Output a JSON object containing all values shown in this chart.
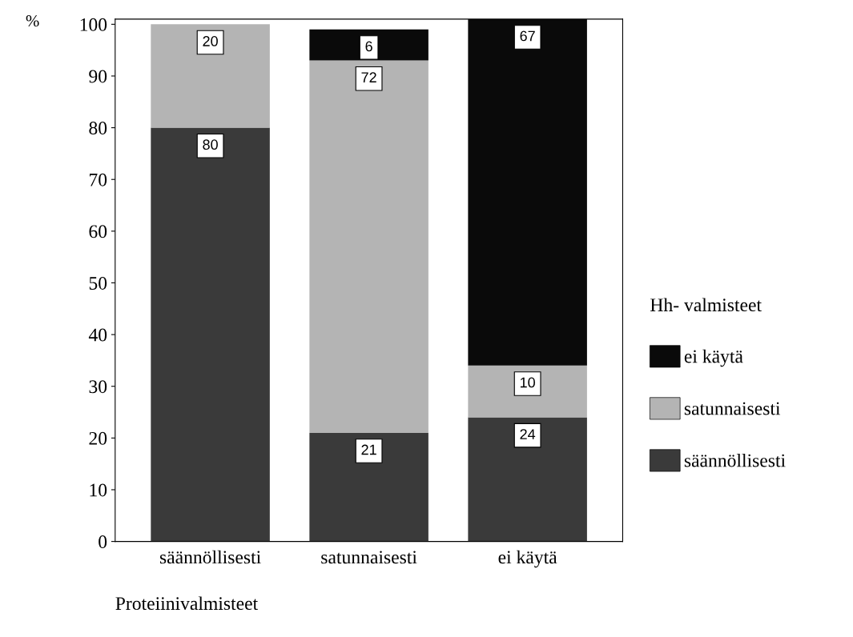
{
  "chart_data": {
    "type": "bar",
    "stacked": true,
    "ylabel": "%",
    "xlabel": "Proteiinivalmisteet",
    "legend_title": "Hh- valmisteet",
    "legend": "right",
    "categories": [
      "säännöllisesti",
      "satunnaisesti",
      "ei käytä"
    ],
    "series": [
      {
        "name": "säännöllisesti",
        "color": "#3a3a3a",
        "values": [
          80,
          21,
          24
        ],
        "value_labels": [
          "80",
          "21",
          "24"
        ]
      },
      {
        "name": "satunnaisesti",
        "color": "#b4b4b4",
        "values": [
          20,
          72,
          10
        ],
        "value_labels": [
          "20",
          "72",
          "10"
        ]
      },
      {
        "name": "ei käytä",
        "color": "#0a0a0a",
        "values": [
          0,
          6,
          67
        ],
        "value_labels": [
          null,
          "6",
          "67"
        ]
      }
    ],
    "ylim": [
      0,
      101
    ],
    "yticks": [
      0,
      10,
      20,
      30,
      40,
      50,
      60,
      70,
      80,
      90,
      100
    ],
    "grid": false
  }
}
